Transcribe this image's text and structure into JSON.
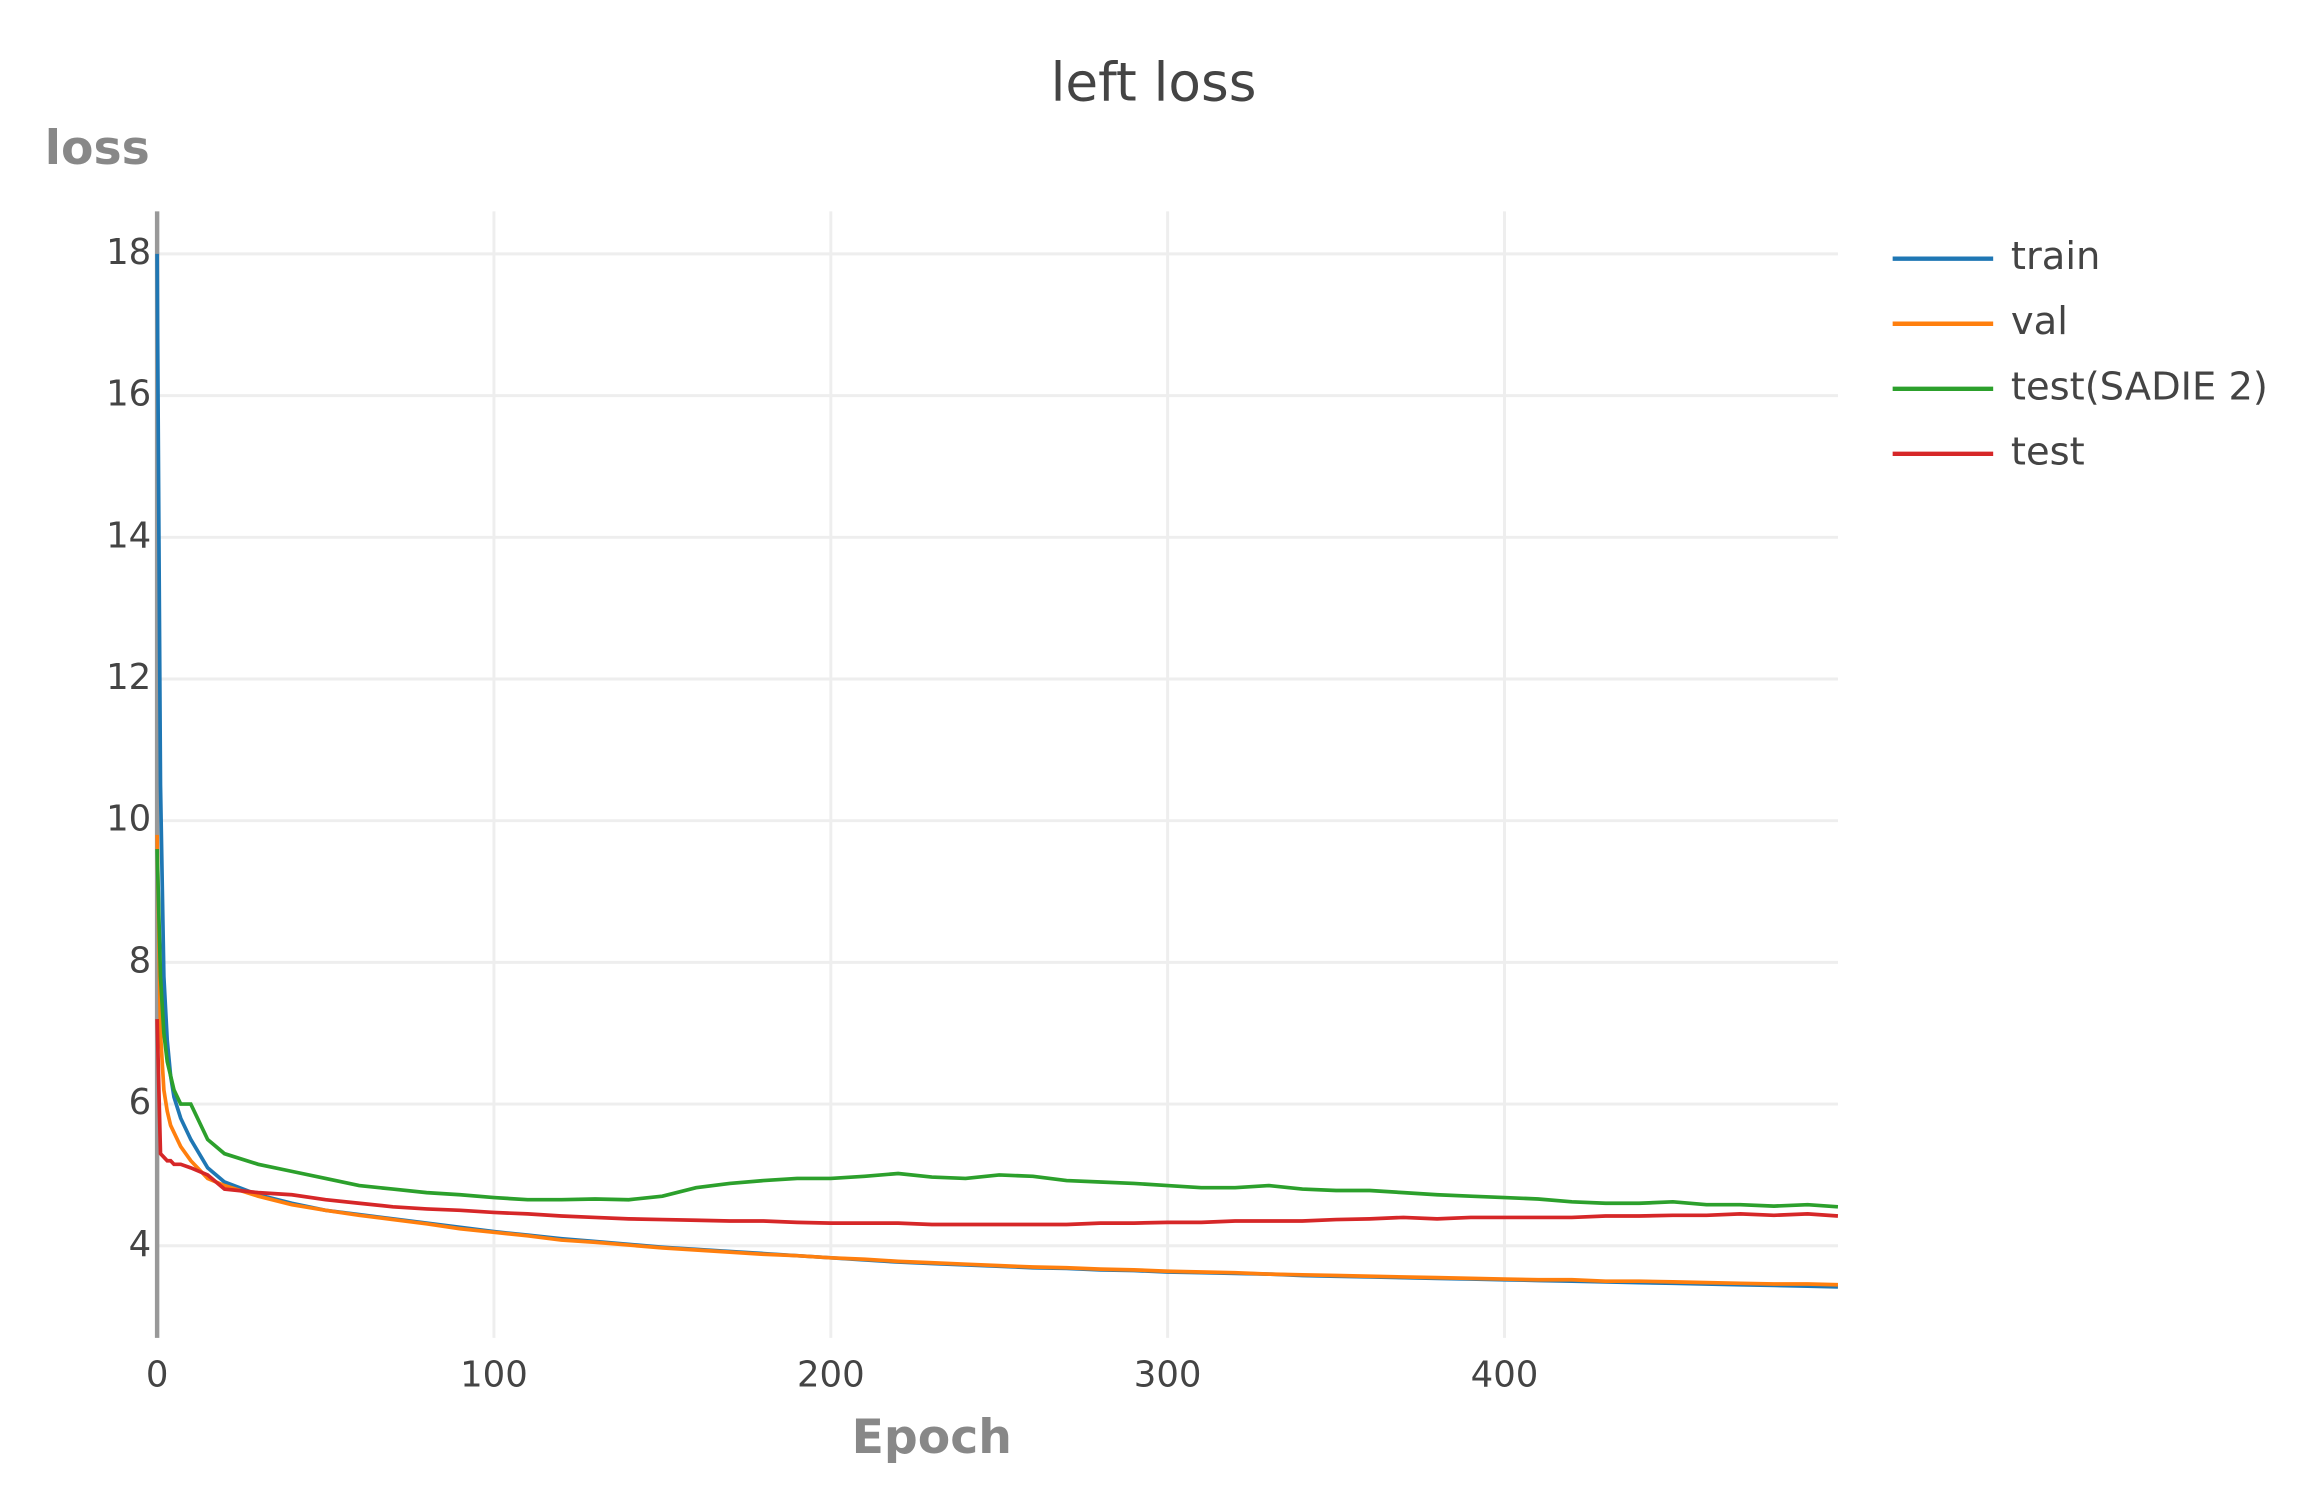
{
  "chart_data": {
    "type": "line",
    "title": "left loss",
    "xlabel": "Epoch",
    "ylabel": "loss",
    "x": [
      0,
      1,
      2,
      3,
      4,
      5,
      7,
      10,
      15,
      20,
      30,
      40,
      50,
      60,
      70,
      80,
      90,
      100,
      110,
      120,
      130,
      140,
      150,
      160,
      170,
      180,
      190,
      200,
      210,
      220,
      230,
      240,
      250,
      260,
      270,
      280,
      290,
      300,
      310,
      320,
      330,
      340,
      350,
      360,
      370,
      380,
      390,
      400,
      410,
      420,
      430,
      440,
      450,
      460,
      470,
      480,
      490,
      499
    ],
    "series": [
      {
        "name": "train",
        "color": "#1f77b4",
        "values": [
          18.0,
          10.5,
          7.8,
          6.9,
          6.4,
          6.1,
          5.8,
          5.5,
          5.1,
          4.9,
          4.72,
          4.6,
          4.5,
          4.44,
          4.38,
          4.32,
          4.26,
          4.2,
          4.15,
          4.1,
          4.06,
          4.02,
          3.98,
          3.95,
          3.92,
          3.89,
          3.86,
          3.83,
          3.8,
          3.77,
          3.75,
          3.73,
          3.71,
          3.69,
          3.68,
          3.66,
          3.65,
          3.63,
          3.62,
          3.61,
          3.6,
          3.58,
          3.57,
          3.56,
          3.55,
          3.54,
          3.53,
          3.52,
          3.51,
          3.5,
          3.49,
          3.48,
          3.47,
          3.46,
          3.45,
          3.44,
          3.43,
          3.42
        ]
      },
      {
        "name": "val",
        "color": "#ff7f0e",
        "values": [
          9.8,
          7.0,
          6.2,
          5.9,
          5.7,
          5.6,
          5.4,
          5.2,
          4.95,
          4.85,
          4.7,
          4.58,
          4.5,
          4.43,
          4.37,
          4.31,
          4.24,
          4.19,
          4.14,
          4.08,
          4.05,
          4.01,
          3.97,
          3.94,
          3.91,
          3.88,
          3.86,
          3.83,
          3.81,
          3.78,
          3.76,
          3.74,
          3.72,
          3.7,
          3.69,
          3.67,
          3.66,
          3.64,
          3.63,
          3.62,
          3.6,
          3.59,
          3.58,
          3.57,
          3.56,
          3.55,
          3.54,
          3.53,
          3.52,
          3.52,
          3.5,
          3.5,
          3.49,
          3.48,
          3.47,
          3.46,
          3.46,
          3.45
        ]
      },
      {
        "name": "test(SADIE 2)",
        "color": "#2ca02c",
        "values": [
          9.6,
          7.8,
          7.0,
          6.6,
          6.4,
          6.2,
          6.0,
          6.0,
          5.5,
          5.3,
          5.15,
          5.05,
          4.95,
          4.85,
          4.8,
          4.75,
          4.72,
          4.68,
          4.65,
          4.65,
          4.66,
          4.65,
          4.7,
          4.82,
          4.88,
          4.92,
          4.95,
          4.95,
          4.98,
          5.02,
          4.97,
          4.95,
          5.0,
          4.98,
          4.92,
          4.9,
          4.88,
          4.85,
          4.82,
          4.82,
          4.85,
          4.8,
          4.78,
          4.78,
          4.75,
          4.72,
          4.7,
          4.68,
          4.66,
          4.62,
          4.6,
          4.6,
          4.62,
          4.58,
          4.58,
          4.56,
          4.58,
          4.55
        ]
      },
      {
        "name": "test",
        "color": "#d62728",
        "values": [
          7.2,
          5.3,
          5.25,
          5.2,
          5.2,
          5.15,
          5.15,
          5.1,
          5.0,
          4.8,
          4.75,
          4.72,
          4.65,
          4.6,
          4.55,
          4.52,
          4.5,
          4.47,
          4.45,
          4.42,
          4.4,
          4.38,
          4.37,
          4.36,
          4.35,
          4.35,
          4.33,
          4.32,
          4.32,
          4.32,
          4.3,
          4.3,
          4.3,
          4.3,
          4.3,
          4.32,
          4.32,
          4.33,
          4.33,
          4.35,
          4.35,
          4.35,
          4.37,
          4.38,
          4.4,
          4.38,
          4.4,
          4.4,
          4.4,
          4.4,
          4.42,
          4.42,
          4.43,
          4.43,
          4.45,
          4.43,
          4.45,
          4.42
        ]
      }
    ],
    "xlim": [
      0,
      499
    ],
    "ylim": [
      2.7,
      18.6
    ],
    "xticks": [
      0,
      100,
      200,
      300,
      400
    ],
    "yticks": [
      4,
      6,
      8,
      10,
      12,
      14,
      16,
      18
    ],
    "grid": true,
    "legend": "right"
  }
}
